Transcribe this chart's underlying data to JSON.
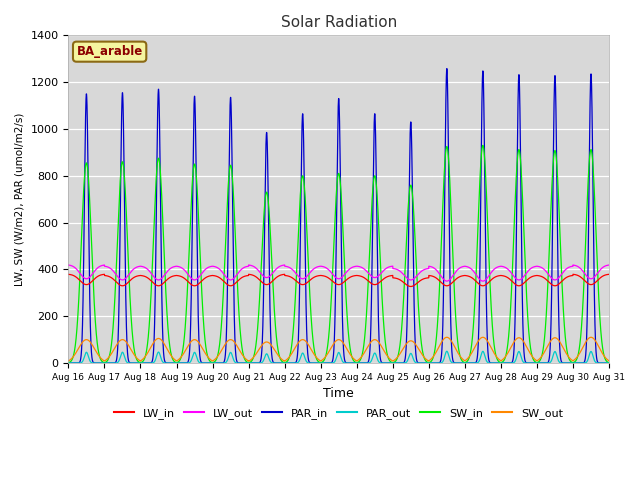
{
  "title": "Solar Radiation",
  "ylabel": "LW, SW (W/m2), PAR (umol/m2/s)",
  "xlabel": "Time",
  "annotation": "BA_arable",
  "ylim": [
    0,
    1400
  ],
  "background_color": "#ffffff",
  "plot_bg_color": "#d8d8d8",
  "colors": {
    "LW_in": "#ff0000",
    "LW_out": "#ff00ff",
    "PAR_in": "#0000cc",
    "PAR_out": "#00cccc",
    "SW_in": "#00ee00",
    "SW_out": "#ff8800"
  },
  "par_peaks": [
    1150,
    1155,
    1170,
    1140,
    1135,
    985,
    1065,
    1130,
    1065,
    1030,
    1258,
    1248,
    1232,
    1228,
    1235
  ],
  "sw_peaks": [
    855,
    860,
    875,
    850,
    845,
    730,
    800,
    810,
    800,
    760,
    925,
    930,
    912,
    908,
    912
  ],
  "sw_out_peaks": [
    100,
    100,
    105,
    100,
    100,
    90,
    100,
    100,
    100,
    95,
    110,
    110,
    108,
    108,
    110
  ],
  "lw_in_base": [
    380,
    375,
    375,
    375,
    375,
    380,
    375,
    375,
    375,
    365,
    375,
    375,
    375,
    375,
    380
  ],
  "lw_in_dip": [
    45,
    45,
    45,
    45,
    45,
    45,
    40,
    40,
    40,
    38,
    45,
    45,
    45,
    45,
    45
  ],
  "lw_out_base": [
    420,
    415,
    415,
    415,
    415,
    420,
    415,
    415,
    415,
    405,
    415,
    415,
    415,
    415,
    420
  ],
  "lw_out_dip": [
    60,
    60,
    60,
    60,
    60,
    55,
    55,
    55,
    50,
    50,
    65,
    65,
    60,
    60,
    60
  ],
  "tick_labels": [
    "Aug 16",
    "Aug 17",
    "Aug 18",
    "Aug 19",
    "Aug 20",
    "Aug 21",
    "Aug 22",
    "Aug 23",
    "Aug 24",
    "Aug 25",
    "Aug 26",
    "Aug 27",
    "Aug 28",
    "Aug 29",
    "Aug 30",
    "Aug 31"
  ],
  "yticks": [
    0,
    200,
    400,
    600,
    800,
    1000,
    1200,
    1400
  ]
}
